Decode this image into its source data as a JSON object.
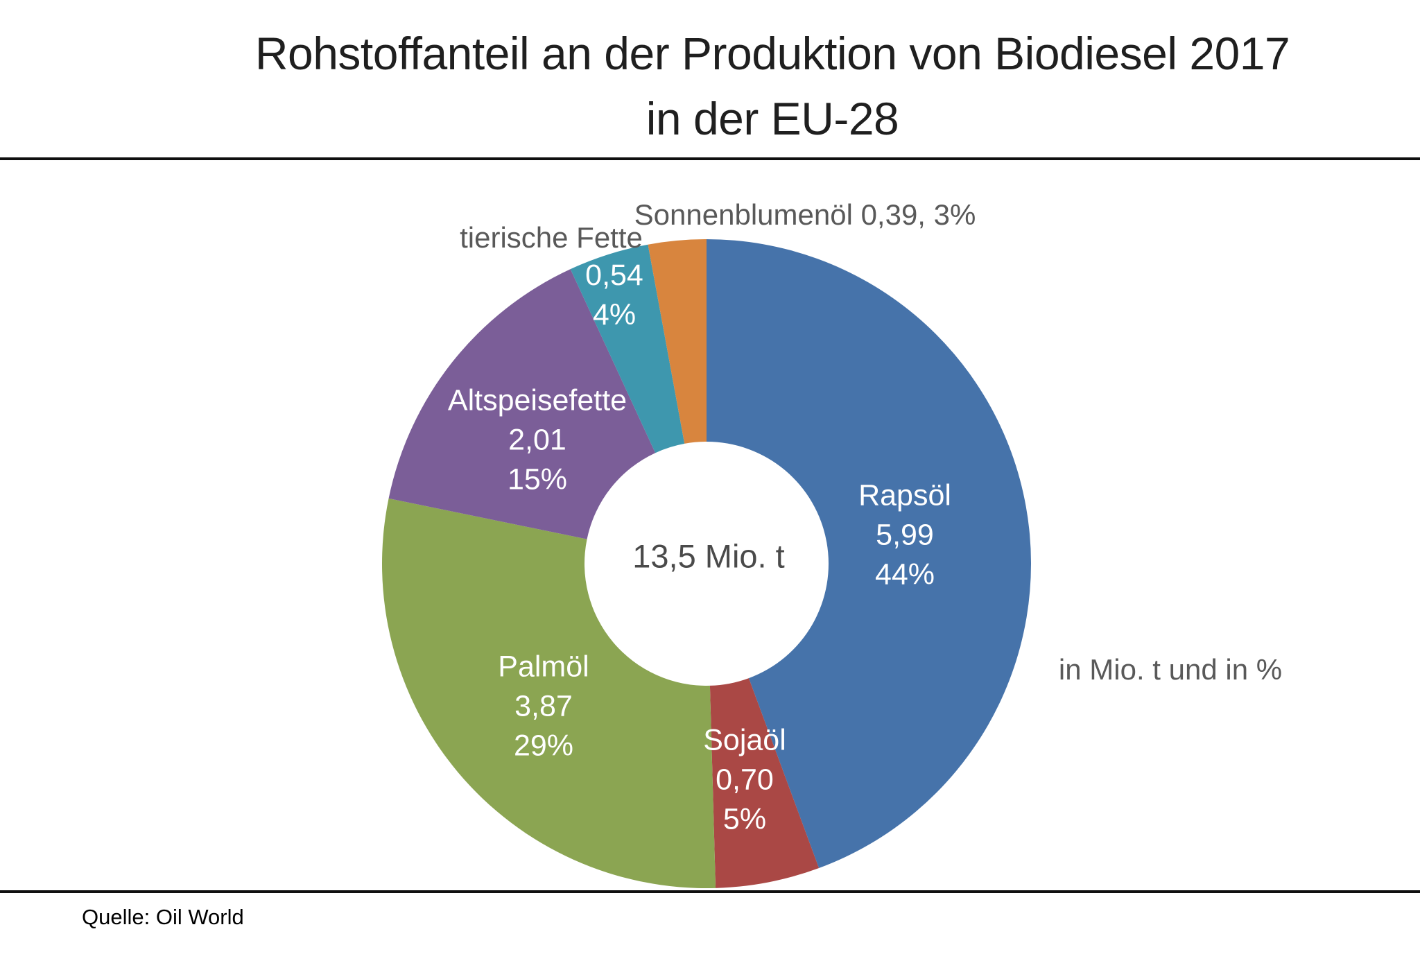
{
  "title": {
    "line1": "Rohstoffanteil an der Produktion von Biodiesel 2017",
    "line2": "in der EU-28"
  },
  "source": {
    "label": "Quelle: Oil World"
  },
  "chart_data": {
    "type": "pie",
    "donut": true,
    "title": "Rohstoffanteil an der Produktion von Biodiesel 2017 in der EU-28",
    "unit_note": "in Mio. t und in %",
    "total_label": "13,5 Mio. t",
    "total_value_mio_t": 13.5,
    "start_angle_deg": 0,
    "direction": "clockwise",
    "legend": "none",
    "segments": [
      {
        "label": "Rapsöl",
        "value_mio_t": 5.99,
        "value_label": "5,99",
        "percent": 44,
        "percent_label": "44%",
        "color": "#4673AA",
        "label_placement": "inside"
      },
      {
        "label": "Sojaöl",
        "value_mio_t": 0.7,
        "value_label": "0,70",
        "percent": 5,
        "percent_label": "5%",
        "color": "#AA4845",
        "label_placement": "inside"
      },
      {
        "label": "Palmöl",
        "value_mio_t": 3.87,
        "value_label": "3,87",
        "percent": 29,
        "percent_label": "29%",
        "color": "#8BA552",
        "label_placement": "inside"
      },
      {
        "label": "Altspeisefette",
        "value_mio_t": 2.01,
        "value_label": "2,01",
        "percent": 15,
        "percent_label": "15%",
        "color": "#7B5E98",
        "label_placement": "inside"
      },
      {
        "label": "tierische Fette",
        "value_mio_t": 0.54,
        "value_label": "0,54",
        "percent": 4,
        "percent_label": "4%",
        "color": "#3E97AE",
        "label_placement": "values-inside-name-outside"
      },
      {
        "label": "Sonnenblumenöl",
        "value_mio_t": 0.39,
        "value_label": "0,39",
        "percent": 3,
        "percent_label": "3%",
        "color": "#D8853E",
        "label_placement": "outside",
        "outside_label": "Sonnenblumenöl 0,39, 3%"
      }
    ]
  }
}
